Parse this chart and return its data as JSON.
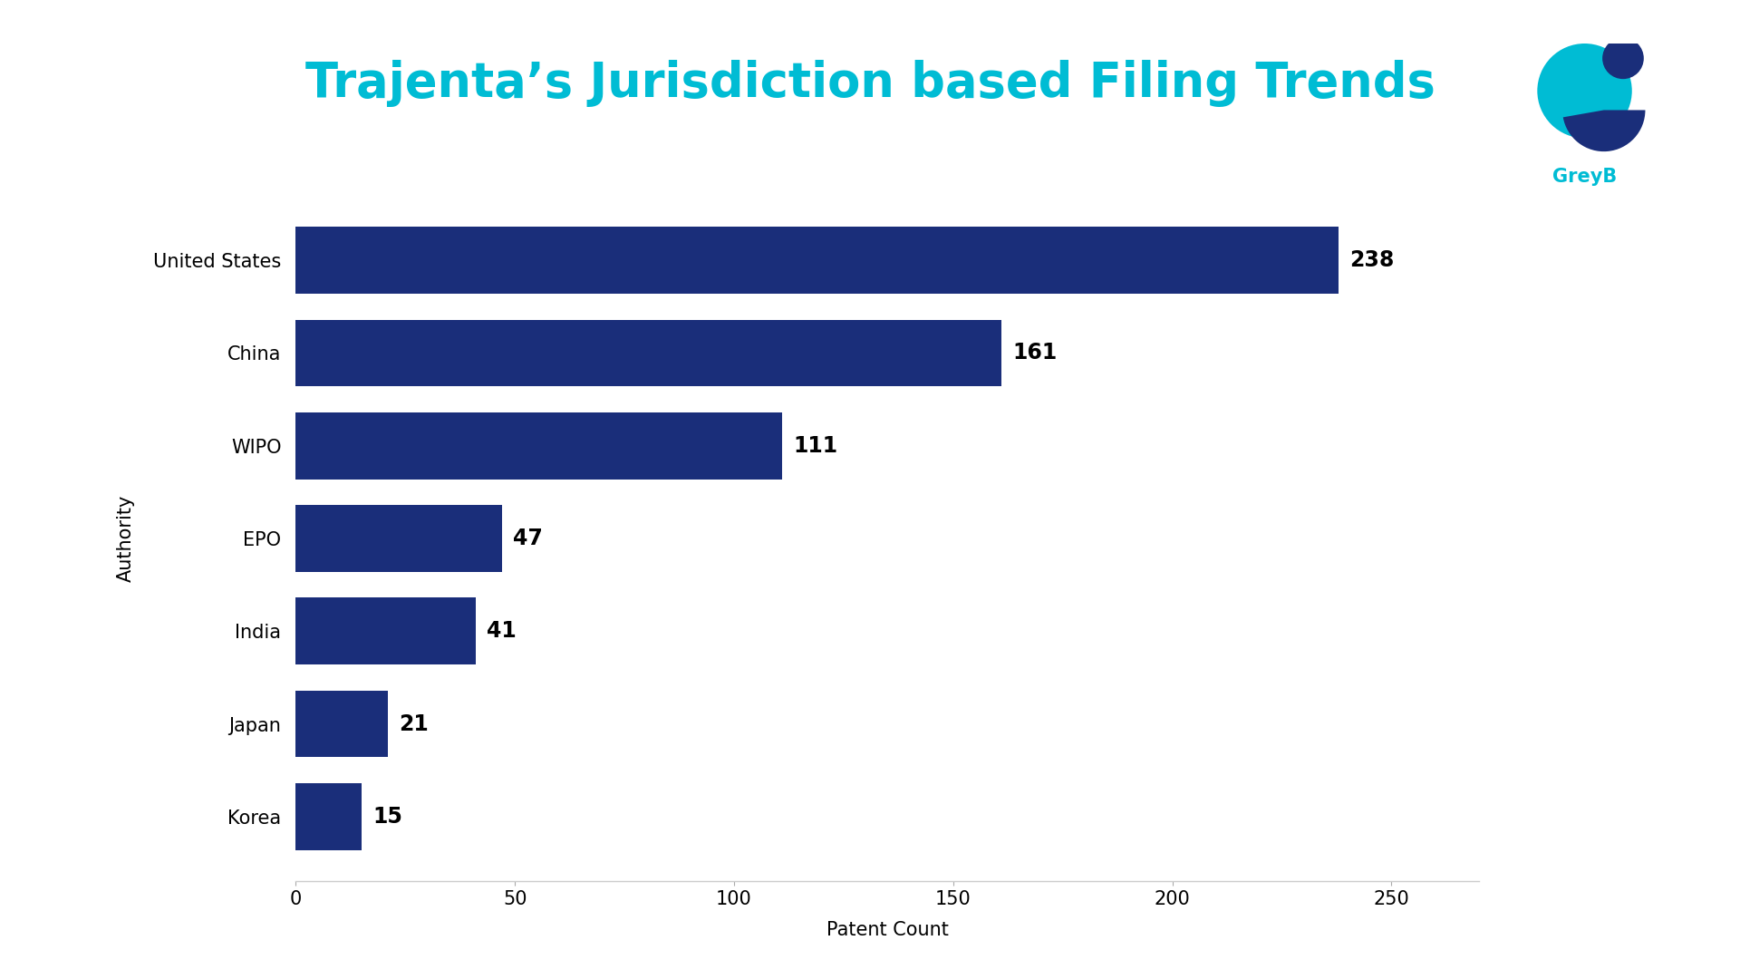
{
  "title": "Trajenta’s Jurisdiction based Filing Trends",
  "title_color": "#00BCD4",
  "categories": [
    "Korea",
    "Japan",
    "India",
    "EPO",
    "WIPO",
    "China",
    "United States"
  ],
  "values": [
    15,
    21,
    41,
    47,
    111,
    161,
    238
  ],
  "bar_color": "#1a2e7a",
  "xlabel": "Patent Count",
  "ylabel": "Authority",
  "xlim": [
    0,
    270
  ],
  "xticks": [
    0,
    50,
    100,
    150,
    200,
    250
  ],
  "background_color": "#ffffff",
  "bar_height": 0.72,
  "title_fontsize": 38,
  "axis_label_fontsize": 15,
  "tick_label_fontsize": 15,
  "value_fontsize": 17,
  "greyb_text": "GreyB",
  "greyb_color": "#00BCD4",
  "logo_teal": "#00BCD4",
  "logo_navy": "#1a2e7a"
}
